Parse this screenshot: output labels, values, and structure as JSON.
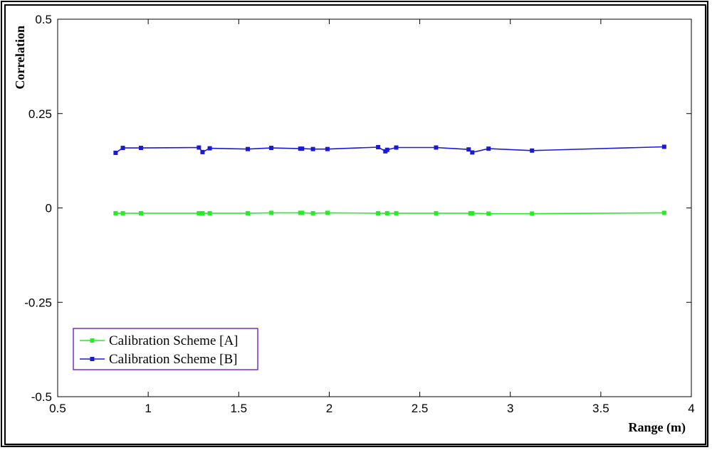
{
  "chart_data": {
    "type": "line",
    "title": "",
    "xlabel": "Range (m)",
    "ylabel": "Correlation",
    "xlim": [
      0.5,
      4
    ],
    "ylim": [
      -0.5,
      0.5
    ],
    "xticks": [
      0.5,
      1,
      1.5,
      2,
      2.5,
      3,
      3.5,
      4
    ],
    "xtick_labels": [
      "0.5",
      "1",
      "1.5",
      "2",
      "2.5",
      "3",
      "3.5",
      "4"
    ],
    "yticks": [
      -0.5,
      -0.25,
      0,
      0.25,
      0.5
    ],
    "ytick_labels": [
      "-0.5",
      "-0.25",
      "0",
      "0.25",
      "0.5"
    ],
    "grid": false,
    "legend_position": "bottom-left",
    "series": [
      {
        "name": "Calibration Scheme [A]",
        "color": "#22ee22",
        "x": [
          0.82,
          0.86,
          0.96,
          1.28,
          1.3,
          1.34,
          1.55,
          1.68,
          1.84,
          1.85,
          1.91,
          1.99,
          2.27,
          2.32,
          2.37,
          2.59,
          2.78,
          2.79,
          2.88,
          3.12,
          3.85
        ],
        "y": [
          -0.014,
          -0.014,
          -0.014,
          -0.014,
          -0.014,
          -0.014,
          -0.014,
          -0.013,
          -0.013,
          -0.013,
          -0.014,
          -0.013,
          -0.014,
          -0.014,
          -0.014,
          -0.014,
          -0.014,
          -0.014,
          -0.015,
          -0.015,
          -0.013
        ]
      },
      {
        "name": "Calibration Scheme [B]",
        "color": "#1a1ad6",
        "x": [
          0.82,
          0.86,
          0.96,
          1.28,
          1.3,
          1.34,
          1.55,
          1.68,
          1.84,
          1.85,
          1.91,
          1.99,
          2.27,
          2.31,
          2.32,
          2.37,
          2.59,
          2.77,
          2.79,
          2.88,
          3.12,
          3.85
        ],
        "y": [
          0.146,
          0.159,
          0.159,
          0.16,
          0.148,
          0.158,
          0.156,
          0.159,
          0.157,
          0.157,
          0.156,
          0.156,
          0.161,
          0.15,
          0.154,
          0.16,
          0.16,
          0.155,
          0.147,
          0.157,
          0.152,
          0.162
        ]
      }
    ]
  }
}
